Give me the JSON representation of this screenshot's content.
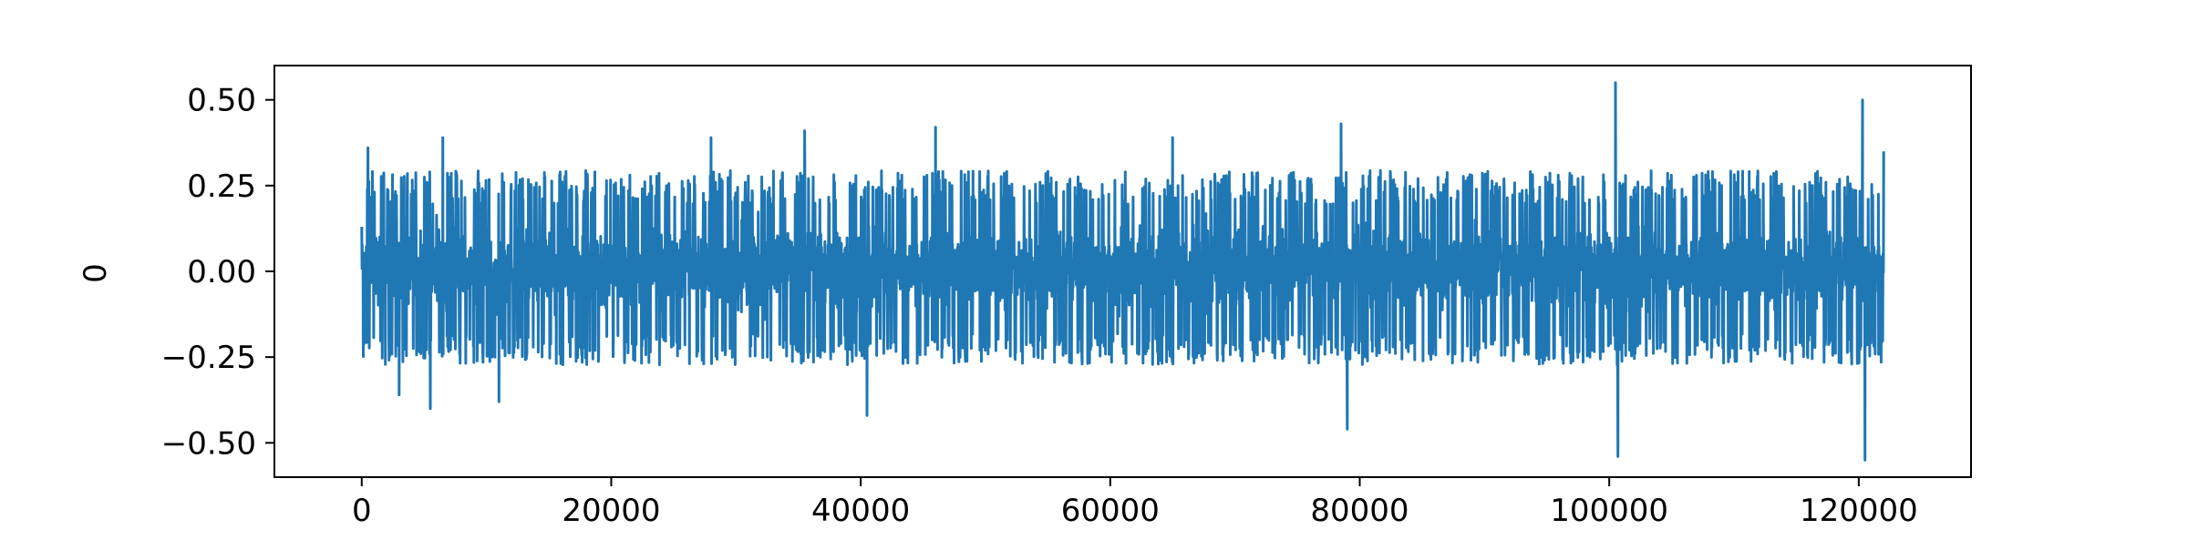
{
  "chart_data": {
    "type": "line",
    "title": "",
    "xlabel": "",
    "ylabel": "0",
    "xlim": [
      -7000,
      129000
    ],
    "ylim": [
      -0.6,
      0.6
    ],
    "x_ticks": [
      0,
      20000,
      40000,
      60000,
      80000,
      100000,
      120000
    ],
    "x_tick_labels": [
      "0",
      "20000",
      "40000",
      "60000",
      "80000",
      "100000",
      "120000"
    ],
    "y_ticks": [
      0.5,
      0.25,
      0.0,
      -0.25,
      -0.5
    ],
    "y_tick_labels": [
      "0.50",
      "0.25",
      "0.00",
      "−0.25",
      "−0.50"
    ],
    "grid": false,
    "legend": "none",
    "series": [
      {
        "color": "#1f77b4",
        "x_range": [
          0,
          122000
        ],
        "typical_envelope": [
          -0.26,
          0.28
        ],
        "extremes": [
          {
            "x": 0,
            "y": 0.13
          },
          {
            "x": 500,
            "y": 0.36
          },
          {
            "x": 3000,
            "y": -0.36
          },
          {
            "x": 5500,
            "y": -0.4
          },
          {
            "x": 6500,
            "y": 0.39
          },
          {
            "x": 11000,
            "y": -0.38
          },
          {
            "x": 28000,
            "y": 0.39
          },
          {
            "x": 35500,
            "y": 0.41
          },
          {
            "x": 40500,
            "y": -0.42
          },
          {
            "x": 46000,
            "y": 0.42
          },
          {
            "x": 65000,
            "y": 0.39
          },
          {
            "x": 78500,
            "y": 0.43
          },
          {
            "x": 79000,
            "y": -0.46
          },
          {
            "x": 100500,
            "y": 0.55
          },
          {
            "x": 100700,
            "y": -0.54
          },
          {
            "x": 120300,
            "y": 0.5
          },
          {
            "x": 120500,
            "y": -0.55
          },
          {
            "x": 122000,
            "y": 0.35
          }
        ]
      }
    ]
  }
}
